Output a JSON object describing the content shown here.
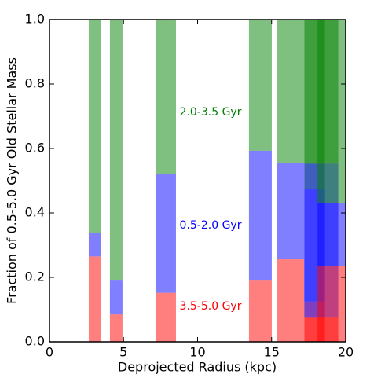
{
  "chart_data": {
    "type": "bar",
    "xlabel": "Deprojected Radius (kpc)",
    "ylabel": "Fraction of 0.5-5.0 Gyr Old Stellar Mass",
    "x_start": [
      2.65,
      4.08,
      7.16,
      13.47,
      15.38,
      17.2,
      17.2,
      18.1
    ],
    "x_end": [
      3.45,
      4.93,
      8.54,
      15.01,
      17.19,
      18.6,
      19.5,
      20.0
    ],
    "series": [
      {
        "name": "3.5-5.0 Gyr",
        "color": "#ff0000",
        "values": [
          0.265,
          0.085,
          0.152,
          0.19,
          0.256,
          0.125,
          0.075,
          0.235
        ]
      },
      {
        "name": "0.5-2.0 Gyr",
        "color": "#0000ff",
        "values": [
          0.072,
          0.105,
          0.37,
          0.403,
          0.298,
          0.35,
          0.478,
          0.195
        ]
      },
      {
        "name": "2.0-3.5 Gyr",
        "color": "#008000",
        "values": [
          0.663,
          0.81,
          0.478,
          0.407,
          0.446,
          0.525,
          0.447,
          0.57
        ]
      }
    ],
    "xlim": [
      0,
      20
    ],
    "xticks": [
      0,
      5,
      10,
      15,
      20
    ],
    "ylim": [
      0,
      1
    ],
    "yticks": [
      {
        "value": 0,
        "label": "0.0"
      },
      0.2,
      0.4,
      0.6,
      0.8,
      {
        "value": 1,
        "label": "1.0"
      }
    ],
    "grid": false
  }
}
